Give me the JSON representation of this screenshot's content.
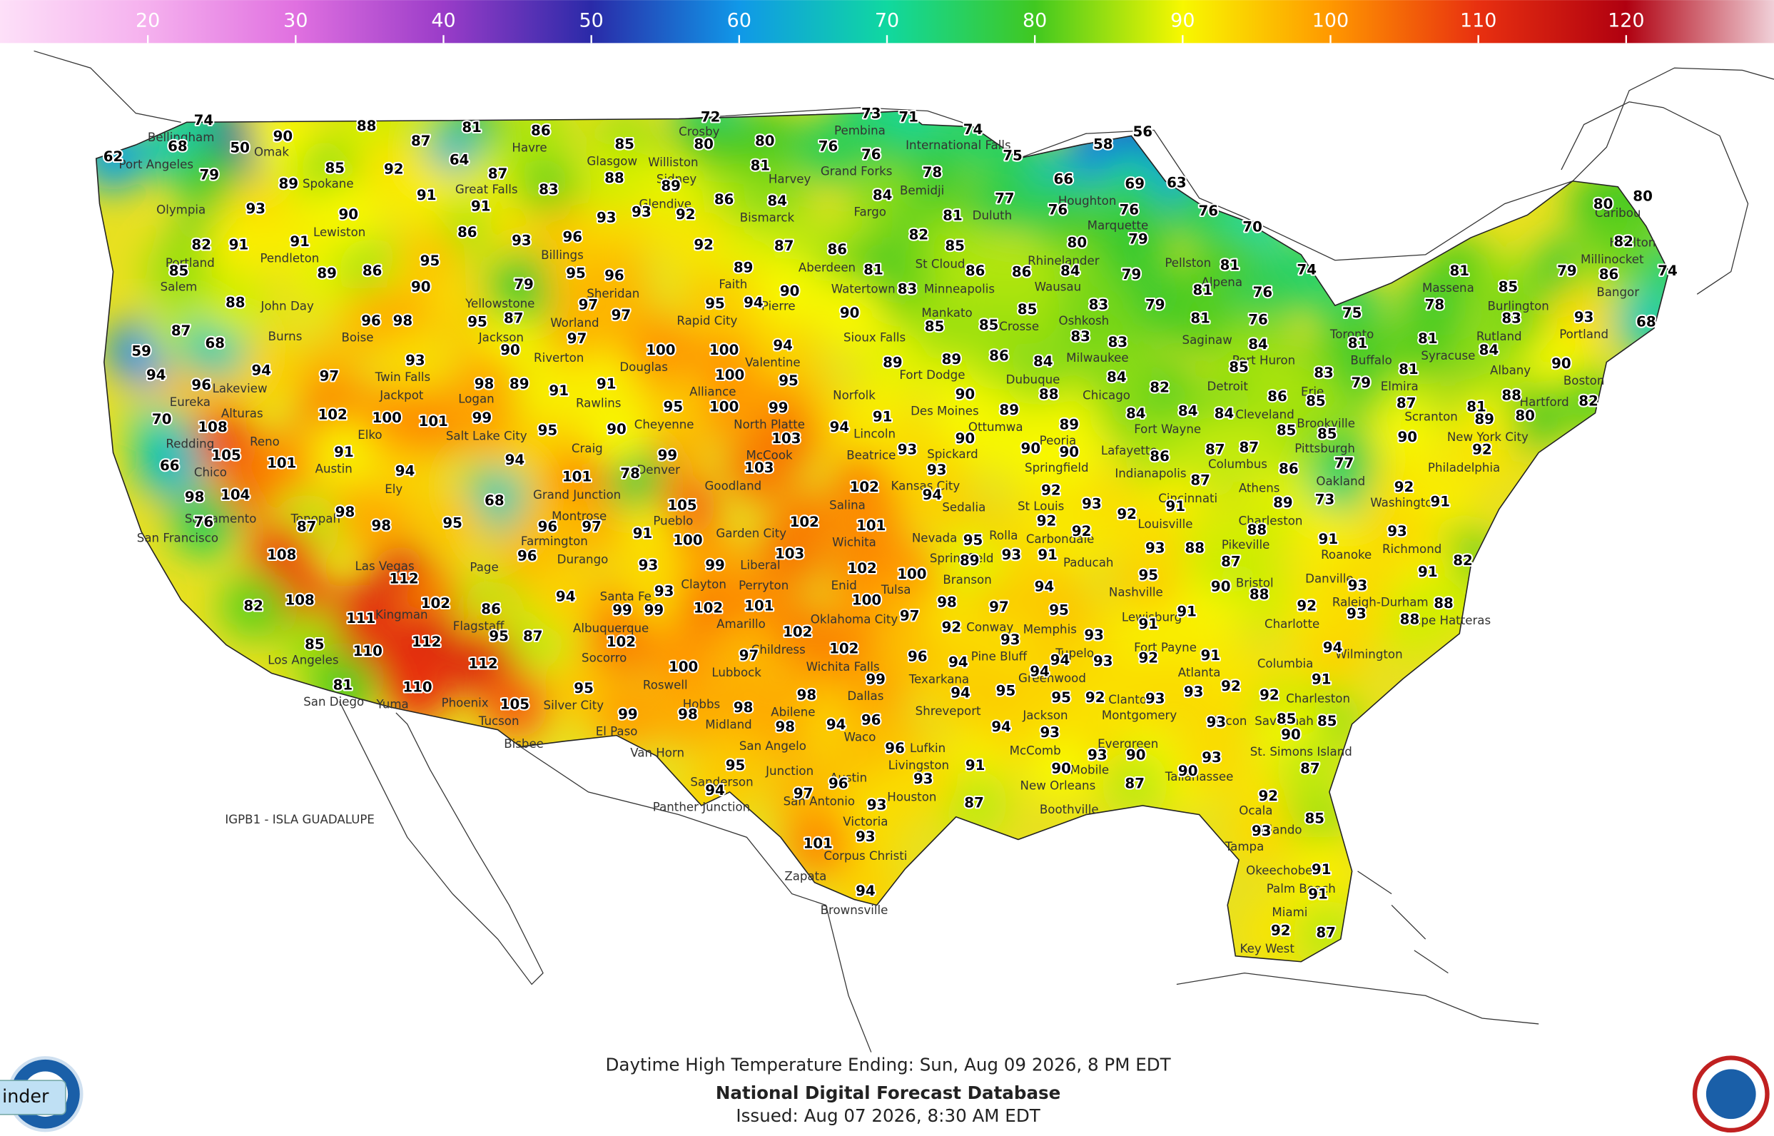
{
  "colorbar": {
    "lim": [
      10,
      130
    ],
    "ticks": [
      20,
      30,
      40,
      50,
      60,
      70,
      80,
      90,
      100,
      110,
      120
    ],
    "colors": [
      "#fde0f8",
      "#f5b0ee",
      "#e070e0",
      "#9a3cc8",
      "#2a2aa8",
      "#1098e8",
      "#10d8a0",
      "#40c820",
      "#f8f800",
      "#ff9800",
      "#e83010",
      "#b00010",
      "#f0d0d8"
    ]
  },
  "temperatures": [
    74,
    68,
    62,
    50,
    90,
    79,
    89,
    93,
    85,
    88,
    87,
    92,
    81,
    64,
    87,
    86,
    83,
    91,
    91,
    90,
    82,
    91,
    91,
    86,
    93,
    96,
    93,
    93,
    92,
    85,
    88,
    72,
    80,
    80,
    81,
    86,
    84,
    89,
    92,
    87,
    86,
    73,
    71,
    74,
    75,
    76,
    76,
    78,
    84,
    81,
    77,
    82,
    85,
    66,
    58,
    56,
    69,
    63,
    76,
    76,
    76,
    70,
    74,
    80,
    79,
    84,
    79,
    81,
    81,
    76,
    76,
    79,
    83,
    83,
    83,
    81,
    84,
    85,
    83,
    75,
    81,
    78,
    81,
    81,
    85,
    83,
    84,
    81,
    79,
    79,
    86,
    74,
    80,
    80,
    82,
    93,
    68,
    90,
    82,
    88,
    80,
    81,
    89,
    87,
    90,
    92,
    85,
    86,
    85,
    85,
    77,
    86,
    92,
    91,
    73,
    89,
    84,
    84,
    84,
    82,
    84,
    86,
    87,
    87,
    87,
    91,
    92,
    93,
    92,
    89,
    88,
    89,
    90,
    90,
    90,
    90,
    93,
    94,
    89,
    86,
    84,
    85,
    85,
    86,
    86,
    83,
    81,
    90,
    85,
    89,
    94,
    91,
    95,
    100,
    100,
    94,
    89,
    95,
    94,
    90,
    100,
    99,
    103,
    103,
    102,
    102,
    101,
    103,
    100,
    105,
    91,
    99,
    95,
    78,
    101,
    90,
    95,
    94,
    68,
    95,
    96,
    97,
    96,
    94,
    98,
    98,
    87,
    101,
    105,
    108,
    104,
    98,
    76,
    70,
    66,
    94,
    96,
    94,
    97,
    59,
    87,
    68,
    88,
    85,
    89,
    86,
    90,
    96,
    98,
    95,
    87,
    95,
    79,
    95,
    96,
    97,
    97,
    97,
    90,
    89,
    91,
    91,
    100,
    98,
    93,
    102,
    100,
    101,
    99,
    91,
    108,
    108,
    82,
    111,
    112,
    102,
    86,
    95,
    87,
    112,
    112,
    85,
    110,
    81,
    110,
    105,
    95,
    94,
    99,
    99,
    102,
    93,
    93,
    99,
    102,
    101,
    102,
    102,
    97,
    100,
    99,
    98,
    98,
    98,
    98,
    94,
    96,
    99,
    102,
    100,
    100,
    97,
    98,
    97,
    92,
    96,
    94,
    94,
    95,
    94,
    95,
    92,
    93,
    94,
    93,
    94,
    93,
    93,
    92,
    91,
    91,
    91,
    93,
    93,
    92,
    93,
    92,
    91,
    94,
    85,
    85,
    90,
    90,
    90,
    93,
    93,
    87,
    90,
    91,
    87,
    96,
    93,
    97,
    96,
    93,
    93,
    101,
    94,
    94,
    95,
    92,
    85,
    93,
    91,
    91,
    92,
    87,
    87,
    82,
    91,
    88,
    88,
    93,
    91,
    93,
    92,
    93,
    88,
    90,
    87,
    88,
    88,
    95,
    93,
    92,
    92,
    91,
    93,
    95,
    94,
    95,
    89,
    93
  ],
  "places": [
    "Bellingham",
    "Port Angeles",
    "Omak",
    "Spokane",
    "Olympia",
    "Portland",
    "Salem",
    "Pendleton",
    "Lewiston",
    "John Day",
    "Burns",
    "Boise",
    "Lakeview",
    "Alturas",
    "Eureka",
    "Redding",
    "Chico",
    "Sacramento",
    "San Francisco",
    "Reno",
    "Elko",
    "Austin",
    "Ely",
    "Tonopah",
    "Las Vegas",
    "Los Angeles",
    "San Diego",
    "Yuma",
    "Bisbee",
    "Tucson",
    "Phoenix",
    "Flagstaff",
    "Page",
    "Kingman",
    "Albuquerque",
    "Santa Fe",
    "Roswell",
    "El Paso",
    "Socorro",
    "Silver City",
    "Farmington",
    "Durango",
    "Grand Junction",
    "Montrose",
    "Craig",
    "Denver",
    "Pueblo",
    "Cheyenne",
    "Rawlins",
    "Douglas",
    "Riverton",
    "Worland",
    "Sheridan",
    "Billings",
    "Yellowstone",
    "Jackson",
    "Twin Falls",
    "Jackpot",
    "Logan",
    "Salt Lake City",
    "Great Falls",
    "Havre",
    "Glasgow",
    "Glendive",
    "Sidney",
    "Williston",
    "Crosby",
    "Bismarck",
    "Fargo",
    "Grand Forks",
    "Harvey",
    "Pembina",
    "International Falls",
    "Bemidji",
    "Duluth",
    "St Cloud",
    "Minneapolis",
    "Aberdeen",
    "Watertown",
    "Pierre",
    "Rapid City",
    "Faith",
    "Sioux Falls",
    "Valentine",
    "Alliance",
    "North Platte",
    "McCook",
    "Goodland",
    "Norfolk",
    "Lincoln",
    "Des Moines",
    "Fort Dodge",
    "Mankato",
    "Dubuque",
    "La Crosse",
    "Wausau",
    "Rhinelander",
    "Marquette",
    "Houghton",
    "Oshkosh",
    "Milwaukee",
    "Chicago",
    "Peoria",
    "Springfield",
    "St Louis",
    "Kansas City",
    "Wichita",
    "Salina",
    "Garden City",
    "Liberal",
    "Amarillo",
    "Lubbock",
    "Abilene",
    "San Angelo",
    "Midland",
    "Dallas",
    "Waco",
    "Austin",
    "San Antonio",
    "Houston",
    "Corpus Christi",
    "Brownsville",
    "Zapata",
    "Junction",
    "Sanderson",
    "Panther Junction",
    "Van Horn",
    "Hobbs",
    "Oklahoma City",
    "Tulsa",
    "Enid",
    "Clayton",
    "Perryton",
    "Wichita Falls",
    "Childress",
    "Shreveport",
    "Texarkana",
    "Pine Bluff",
    "Memphis",
    "Jackson",
    "New Orleans",
    "Boothville",
    "Mobile",
    "Montgomery",
    "Atlanta",
    "Nashville",
    "Louisville",
    "Cincinnati",
    "Indianapolis",
    "Fort Wayne",
    "Lafayette",
    "Detroit",
    "Cleveland",
    "Pittsburgh",
    "Columbus",
    "Charleston",
    "Roanoke",
    "Richmond",
    "Washington",
    "Philadelphia",
    "New York City",
    "Boston",
    "Hartford",
    "Albany",
    "Syracuse",
    "Buffalo",
    "Erie",
    "Toronto",
    "Burlington",
    "Portland",
    "Bangor",
    "Caribou",
    "Houlton",
    "Millinocket",
    "Massena",
    "Rutland",
    "Scranton",
    "Elmira",
    "Brookville",
    "Oakland",
    "Athens",
    "Pikeville",
    "Bristol",
    "Danville",
    "Raleigh-Durham",
    "Cape Hatteras",
    "Wilmington",
    "Charlotte",
    "Columbia",
    "Charleston",
    "Savannah",
    "St. Simons Island",
    "Macon",
    "Tallahassee",
    "Ocala",
    "Orlando",
    "Tampa",
    "Okeechobee",
    "Palm Beach",
    "Miami",
    "Key West",
    "Greenwood",
    "Tupelo",
    "Lewisburg",
    "Fort Payne",
    "Clanton",
    "Evergreen",
    "McComb",
    "Lufkin",
    "Livingston",
    "Victoria",
    "Nevada",
    "Rolla",
    "Springfield",
    "Branson",
    "Spickard",
    "Ottumwa",
    "Beatrice",
    "Sedalia",
    "Paducah",
    "Carbondale",
    "Conway",
    "Saginaw",
    "Alpena",
    "Port Huron",
    "Pellston"
  ],
  "island": "IGPB1 - ISLA GUADALUPE",
  "footer": {
    "line1": "Daytime High Temperature Ending: Sun, Aug 09 2026, 8 PM EDT",
    "line2": "National Digital Forecast Database",
    "line3": "Issued: Aug 07 2026, 8:30 AM EDT"
  },
  "button": "inder"
}
